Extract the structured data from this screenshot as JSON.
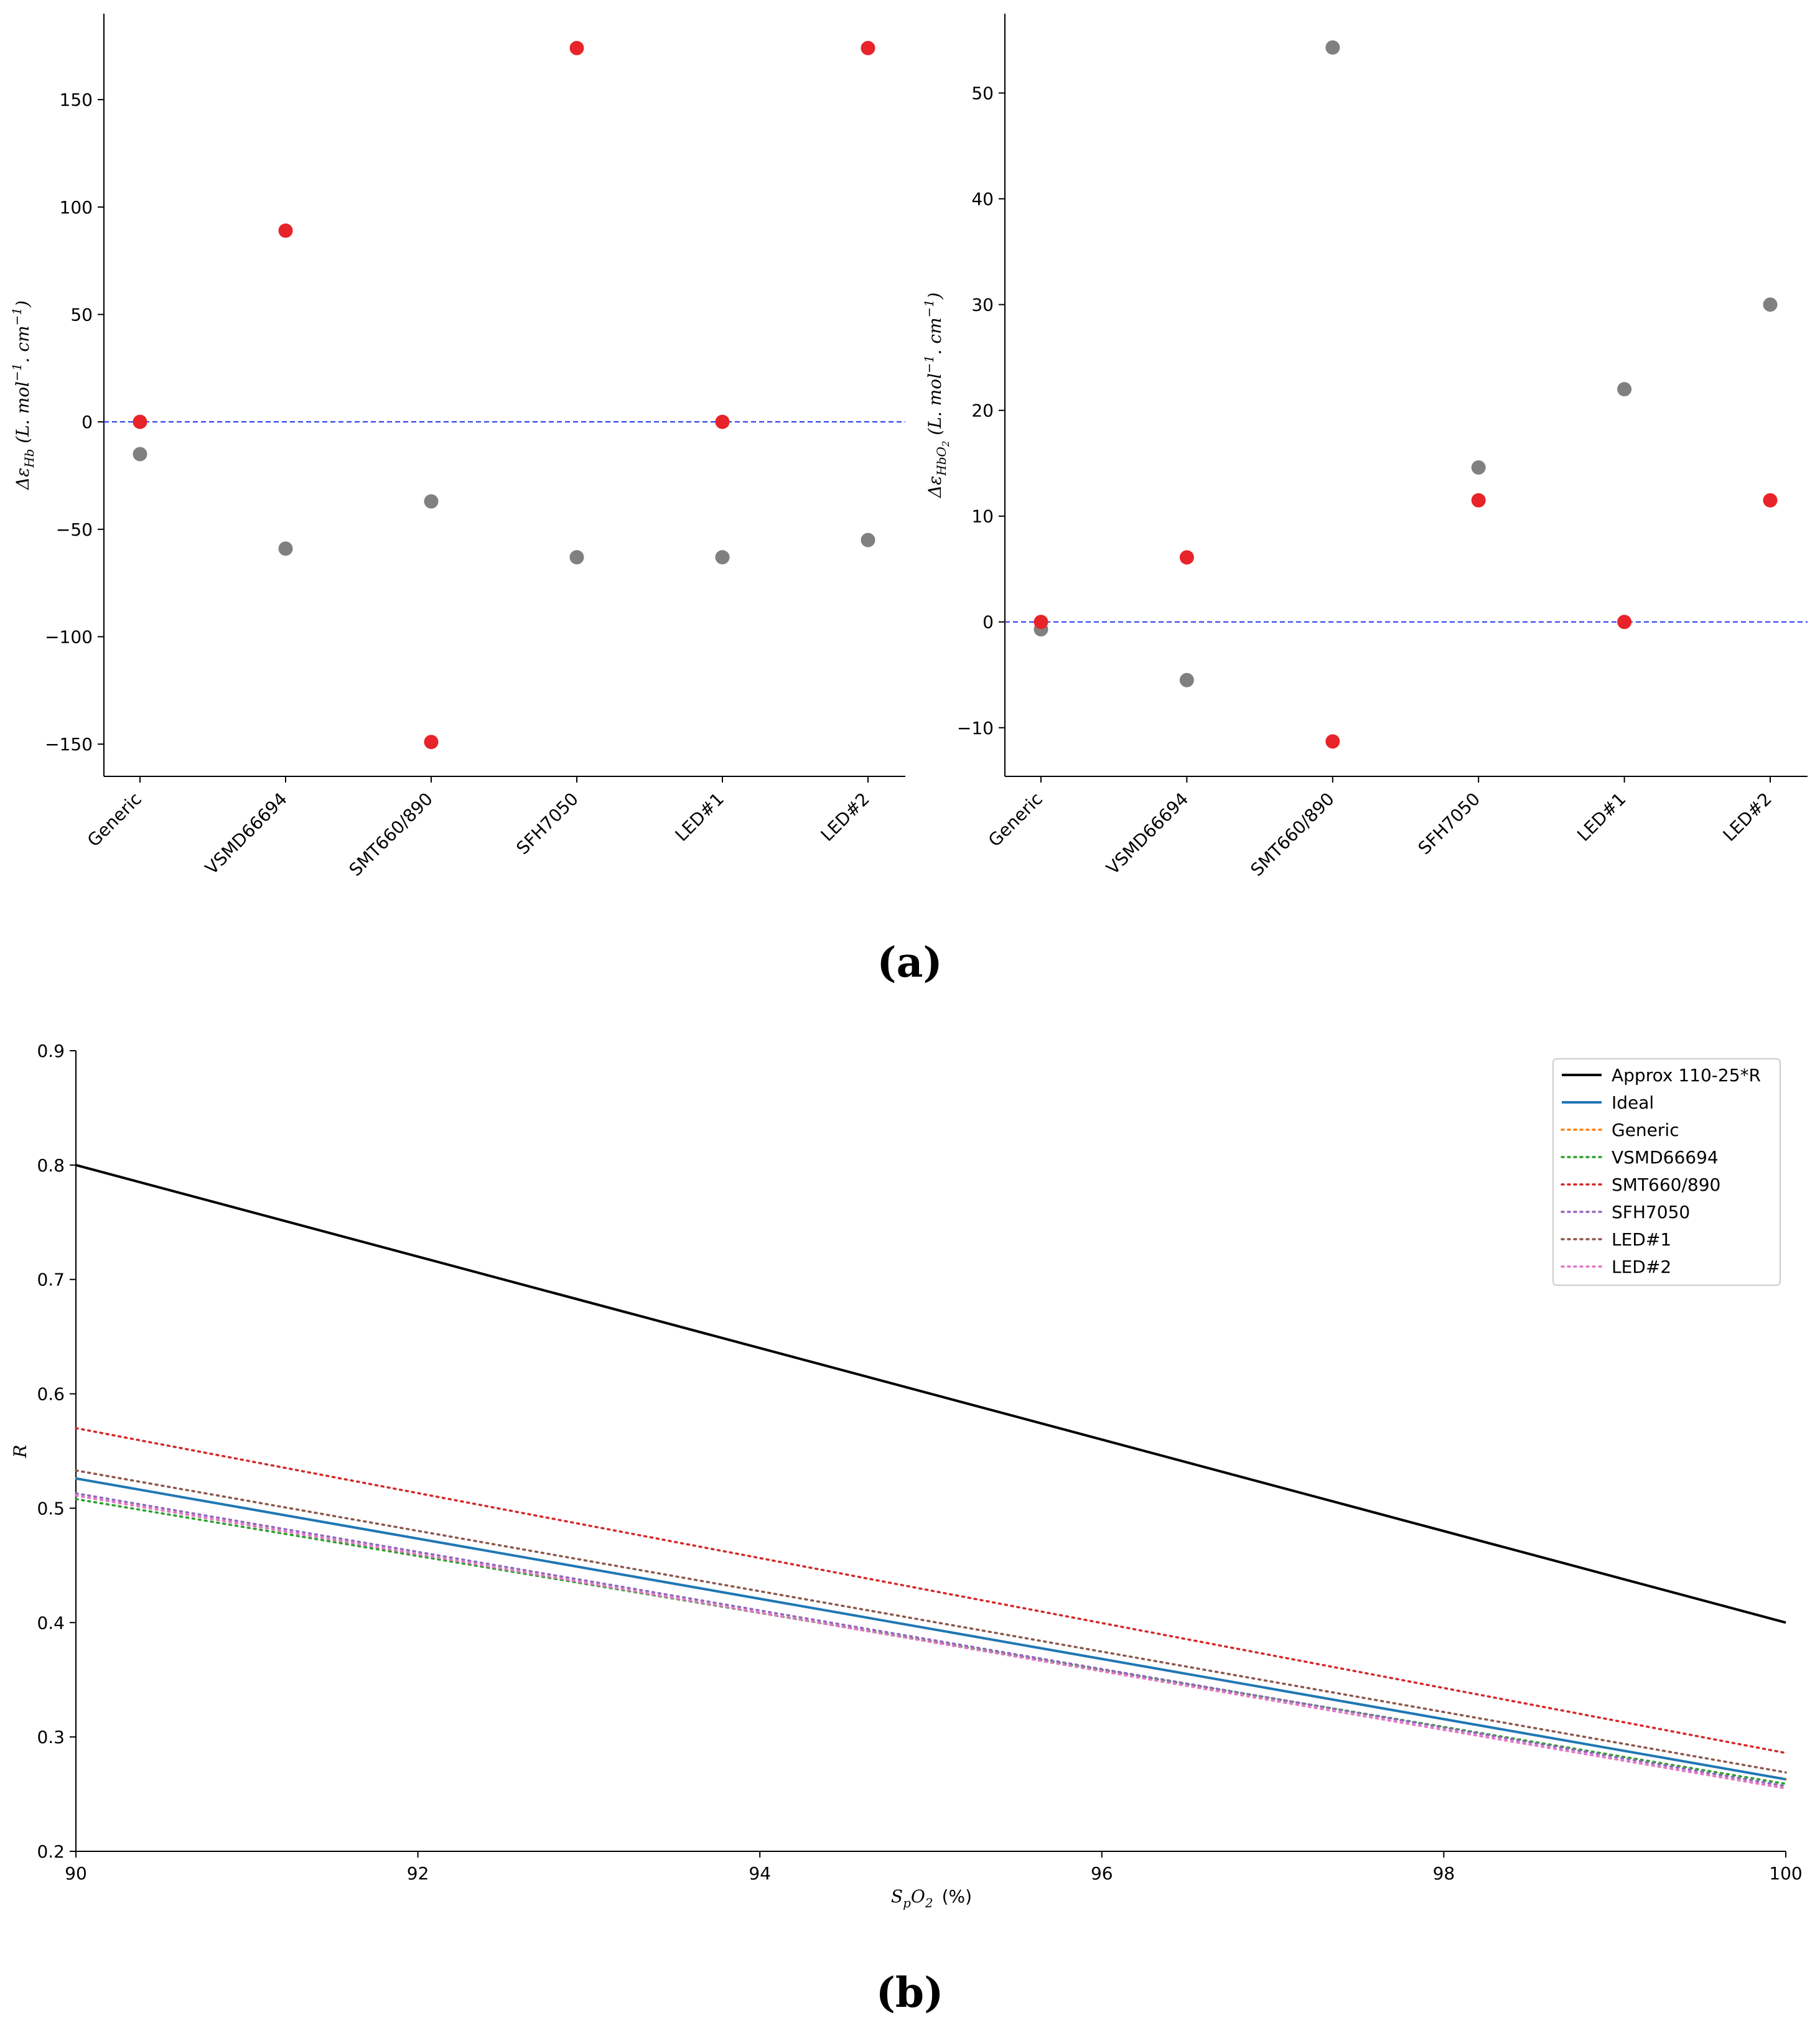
{
  "chart_data": [
    {
      "type": "scatter",
      "categories": [
        "Generic",
        "VSMD66694",
        "SMT660/890",
        "SFH7050",
        "LED#1",
        "LED#2"
      ],
      "ylabel": "Δε_Hb (L. mol⁻¹. cm⁻¹)",
      "ylabel_symbol": "Δε",
      "ylabel_sub": "Hb",
      "ylabel_units_pre": " (L. mol",
      "ylabel_units_mid": ". cm",
      "ylabel_units_end": ")",
      "ylabel_exp": "−1",
      "ylim": [
        -165,
        190
      ],
      "yticks": [
        -150,
        -100,
        -50,
        0,
        50,
        100,
        150
      ],
      "ytick_labels": [
        "−150",
        "−100",
        "−50",
        "0",
        "50",
        "100",
        "150"
      ],
      "reference_line": 0,
      "series": [
        {
          "name": "gray",
          "color": "#808080",
          "values": [
            -15,
            -59,
            -37,
            -63,
            -63,
            -55
          ]
        },
        {
          "name": "red",
          "color": "#e8232a",
          "values": [
            0,
            89,
            -149,
            174,
            0,
            174
          ]
        }
      ]
    },
    {
      "type": "scatter",
      "categories": [
        "Generic",
        "VSMD66694",
        "SMT660/890",
        "SFH7050",
        "LED#1",
        "LED#2"
      ],
      "ylabel": "Δε_HbO2 (L. mol⁻¹. cm⁻¹)",
      "ylabel_symbol": "Δε",
      "ylabel_sub": "HbO",
      "ylabel_sub2": "2",
      "ylabel_units_pre": " (L. mol",
      "ylabel_units_mid": ". cm",
      "ylabel_units_end": ")",
      "ylabel_exp": "−1",
      "ylim": [
        -14.6,
        57.5
      ],
      "yticks": [
        -10,
        0,
        10,
        20,
        30,
        40,
        50
      ],
      "ytick_labels": [
        "−10",
        "0",
        "10",
        "20",
        "30",
        "40",
        "50"
      ],
      "reference_line": 0,
      "series": [
        {
          "name": "gray",
          "color": "#808080",
          "values": [
            -0.7,
            -5.5,
            54.3,
            14.6,
            22,
            30
          ]
        },
        {
          "name": "red",
          "color": "#e8232a",
          "values": [
            0,
            6.1,
            -11.3,
            11.5,
            0,
            11.5
          ]
        }
      ]
    },
    {
      "type": "line",
      "xlabel": "SpO2 (%)",
      "xlabel_main": "S",
      "xlabel_sub1": "p",
      "xlabel_mid": "O",
      "xlabel_sub2": "2",
      "xlabel_units": "(%)",
      "ylabel": "R",
      "xlim": [
        90,
        100
      ],
      "ylim": [
        0.2,
        0.9
      ],
      "xticks": [
        90,
        92,
        94,
        96,
        98,
        100
      ],
      "xtick_labels": [
        "90",
        "92",
        "94",
        "96",
        "98",
        "100"
      ],
      "yticks": [
        0.2,
        0.3,
        0.4,
        0.5,
        0.6,
        0.7,
        0.8,
        0.9
      ],
      "ytick_labels": [
        "0.2",
        "0.3",
        "0.4",
        "0.5",
        "0.6",
        "0.7",
        "0.8",
        "0.9"
      ],
      "legend_position": "top-right",
      "series": [
        {
          "name": "Approx 110-25*R",
          "color": "#000000",
          "style": "solid",
          "x": [
            90,
            100
          ],
          "y": [
            0.8,
            0.4
          ]
        },
        {
          "name": "Ideal",
          "color": "#1f77b4",
          "style": "solid",
          "x": [
            90,
            100
          ],
          "y": [
            0.526,
            0.263
          ]
        },
        {
          "name": "Generic",
          "color": "#ff7f0e",
          "style": "dotted",
          "x": [
            90,
            100
          ],
          "y": [
            0.526,
            0.263
          ]
        },
        {
          "name": "VSMD66694",
          "color": "#2ca02c",
          "style": "dotted",
          "x": [
            90,
            100
          ],
          "y": [
            0.508,
            0.259
          ]
        },
        {
          "name": "SMT660/890",
          "color": "#d62728",
          "style": "dotted",
          "x": [
            90,
            100
          ],
          "y": [
            0.57,
            0.286
          ]
        },
        {
          "name": "SFH7050",
          "color": "#9467bd",
          "style": "dotted",
          "x": [
            90,
            100
          ],
          "y": [
            0.513,
            0.257
          ]
        },
        {
          "name": "LED#1",
          "color": "#8c564b",
          "style": "dotted",
          "x": [
            90,
            100
          ],
          "y": [
            0.533,
            0.269
          ]
        },
        {
          "name": "LED#2",
          "color": "#e377c2",
          "style": "dotted",
          "x": [
            90,
            100
          ],
          "y": [
            0.511,
            0.255
          ]
        }
      ]
    }
  ],
  "panels": {
    "a": "(a)",
    "b": "(b)"
  }
}
